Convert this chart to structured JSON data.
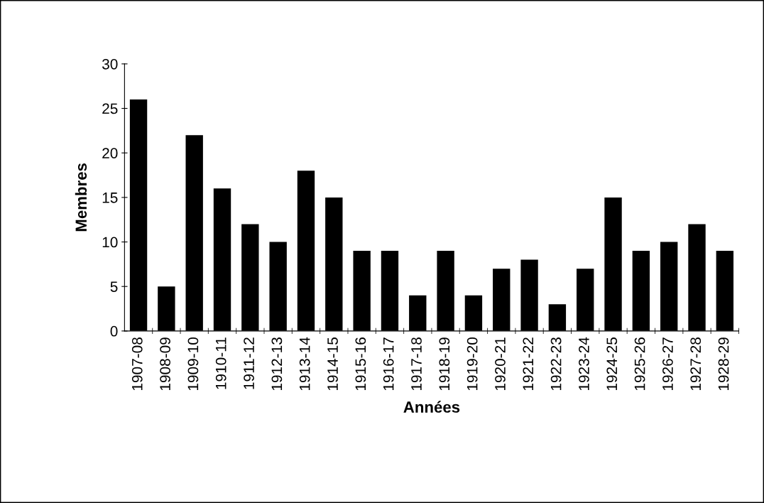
{
  "chart_data": {
    "type": "bar",
    "xlabel": "Années",
    "ylabel": "Membres",
    "categories": [
      "1907-08",
      "1908-09",
      "1909-10",
      "1910-11",
      "1911-12",
      "1912-13",
      "1913-14",
      "1914-15",
      "1915-16",
      "1916-17",
      "1917-18",
      "1918-19",
      "1919-20",
      "1920-21",
      "1921-22",
      "1922-23",
      "1923-24",
      "1924-25",
      "1925-26",
      "1926-27",
      "1927-28",
      "1928-29"
    ],
    "values": [
      26,
      5,
      22,
      16,
      12,
      10,
      18,
      15,
      9,
      9,
      4,
      9,
      4,
      7,
      8,
      3,
      7,
      15,
      9,
      10,
      12,
      9
    ],
    "color": "#000000",
    "ylim": [
      0,
      30
    ],
    "yticks": [
      0,
      5,
      10,
      15,
      20,
      25,
      30
    ],
    "grid": false,
    "legend": false
  }
}
